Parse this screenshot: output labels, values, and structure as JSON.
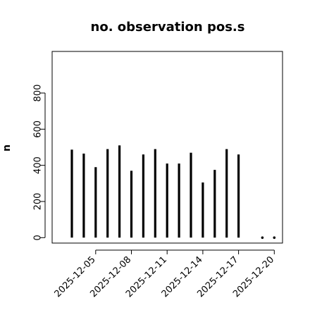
{
  "chart_data": {
    "type": "bar",
    "title": "no. observation pos.s",
    "xlabel": "",
    "ylabel": "n",
    "ylim": [
      -30,
      1030
    ],
    "y_ticks": [
      0,
      200,
      400,
      600,
      800
    ],
    "x": [
      "2025-12-03",
      "2025-12-04",
      "2025-12-05",
      "2025-12-06",
      "2025-12-07",
      "2025-12-08",
      "2025-12-09",
      "2025-12-10",
      "2025-12-11",
      "2025-12-12",
      "2025-12-13",
      "2025-12-14",
      "2025-12-15",
      "2025-12-16",
      "2025-12-17",
      "2025-12-18",
      "2025-12-19",
      "2025-12-20"
    ],
    "values": [
      487,
      465,
      390,
      490,
      510,
      370,
      460,
      490,
      410,
      410,
      470,
      305,
      375,
      490,
      460,
      0,
      0,
      0
    ],
    "zero_marker_dates": [
      "2025-12-19",
      "2025-12-20"
    ],
    "x_ticks": [
      {
        "label": "2025-12-05",
        "value": "2025-12-05",
        "color": "#000000"
      },
      {
        "label": "2025-12-08",
        "value": "2025-12-08",
        "color": "#000000"
      },
      {
        "label": "2025-12-11",
        "value": "2025-12-11",
        "color": "#228B22"
      },
      {
        "label": "2025-12-14",
        "value": "2025-12-14",
        "color": "#000000"
      },
      {
        "label": "2025-12-17",
        "value": "2025-12-17",
        "color": "#000000"
      },
      {
        "label": "2025-12-20",
        "value": "2025-12-20",
        "color": "#000000"
      }
    ],
    "bar_color": "#000000",
    "grid": false
  }
}
